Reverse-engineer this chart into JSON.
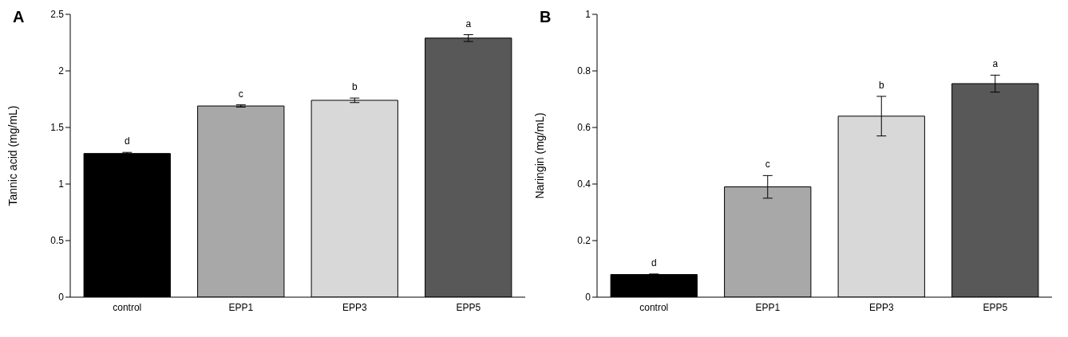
{
  "chart_data": [
    {
      "type": "bar",
      "title": "A",
      "ylabel": "Tannic acid (mg/mL)",
      "categories": [
        "control",
        "EPP1",
        "EPP3",
        "EPP5"
      ],
      "values": [
        1.27,
        1.69,
        1.74,
        2.29
      ],
      "errors": [
        0.01,
        0.01,
        0.02,
        0.03
      ],
      "colors": [
        "#000000",
        "#a8a8a8",
        "#d8d8d8",
        "#585858"
      ],
      "ylim": [
        0,
        2.5
      ],
      "yticks": [
        0,
        0.5,
        1,
        1.5,
        2,
        2.5
      ],
      "grid": false,
      "annotations": [
        {
          "text": "d",
          "x": "control",
          "y": 1.28
        },
        {
          "text": "c",
          "x": "EPP1",
          "y": 1.7
        },
        {
          "text": "b",
          "x": "EPP3",
          "y": 1.76
        },
        {
          "text": "a",
          "x": "EPP5",
          "y": 2.32
        }
      ]
    },
    {
      "type": "bar",
      "title": "B",
      "ylabel": "Naringin (mg/mL)",
      "categories": [
        "control",
        "EPP1",
        "EPP3",
        "EPP5"
      ],
      "values": [
        0.08,
        0.39,
        0.64,
        0.755
      ],
      "errors": [
        0.002,
        0.04,
        0.07,
        0.03
      ],
      "colors": [
        "#000000",
        "#a8a8a8",
        "#d8d8d8",
        "#585858"
      ],
      "ylim": [
        0,
        1
      ],
      "yticks": [
        0,
        0.2,
        0.4,
        0.6,
        0.8,
        1
      ],
      "grid": false,
      "annotations": [
        {
          "text": "d",
          "x": "control",
          "y": 0.082
        },
        {
          "text": "c",
          "x": "EPP1",
          "y": 0.43
        },
        {
          "text": "b",
          "x": "EPP3",
          "y": 0.71
        },
        {
          "text": "a",
          "x": "EPP5",
          "y": 0.785
        }
      ]
    }
  ]
}
